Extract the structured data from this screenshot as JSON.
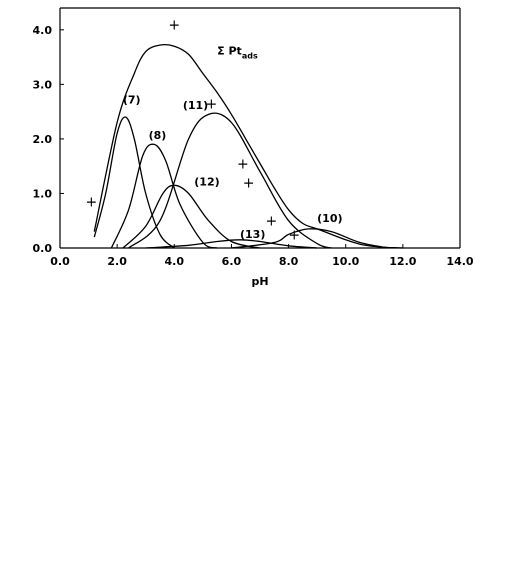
{
  "chart_data": {
    "type": "line",
    "title": "",
    "xlabel": "pH",
    "ylabel": "",
    "xlim": [
      0,
      14
    ],
    "ylim": [
      0,
      4.4
    ],
    "x_ticks": [
      0,
      2,
      4,
      6,
      8,
      10,
      12,
      14
    ],
    "y_ticks": [
      0,
      1,
      2,
      3,
      4
    ],
    "x_tick_labels": [
      "0.0",
      "2.0",
      "4.0",
      "6.0",
      "8.0",
      "10.0",
      "12.0",
      "14.0"
    ],
    "y_tick_labels": [
      "0.0",
      "1.0",
      "2.0",
      "3.0",
      "4.0"
    ],
    "grid": false,
    "series": [
      {
        "name": "(7)",
        "label": "(7)",
        "x": [
          1.2,
          1.6,
          2.0,
          2.3,
          2.6,
          3.0,
          3.5,
          4.0
        ],
        "y": [
          0.2,
          1.0,
          2.1,
          2.4,
          2.0,
          1.0,
          0.25,
          0.0
        ]
      },
      {
        "name": "(8)",
        "label": "(8)",
        "x": [
          1.8,
          2.4,
          2.9,
          3.3,
          3.7,
          4.2,
          5.0,
          5.5
        ],
        "y": [
          0.0,
          0.7,
          1.7,
          1.9,
          1.6,
          0.8,
          0.1,
          0.0
        ]
      },
      {
        "name": "(12)",
        "label": "(12)",
        "x": [
          2.2,
          3.0,
          3.6,
          4.0,
          4.5,
          5.2,
          6.0,
          7.0
        ],
        "y": [
          0.0,
          0.4,
          1.0,
          1.15,
          1.0,
          0.5,
          0.12,
          0.0
        ]
      },
      {
        "name": "(11)",
        "label": "(11)",
        "x": [
          2.4,
          3.5,
          4.5,
          5.2,
          6.0,
          7.0,
          8.0,
          9.0,
          9.5
        ],
        "y": [
          0.0,
          0.5,
          2.0,
          2.45,
          2.3,
          1.4,
          0.5,
          0.08,
          0.0
        ]
      },
      {
        "name": "(13)",
        "label": "(13)",
        "x": [
          3.0,
          4.5,
          5.5,
          6.3,
          7.0,
          8.0,
          9.0
        ],
        "y": [
          0.0,
          0.05,
          0.12,
          0.15,
          0.12,
          0.04,
          0.0
        ]
      },
      {
        "name": "(10)",
        "label": "(10)",
        "x": [
          6.0,
          7.5,
          8.0,
          8.7,
          9.5,
          10.5,
          11.5
        ],
        "y": [
          0.0,
          0.1,
          0.25,
          0.35,
          0.3,
          0.1,
          0.0
        ]
      },
      {
        "name": "ΣPt_ads",
        "label": "Σ Pt",
        "label_sub": "ads",
        "x": [
          1.2,
          2.0,
          2.6,
          3.0,
          3.5,
          4.0,
          4.5,
          5.0,
          5.5,
          6.0,
          6.5,
          7.0,
          7.5,
          8.0,
          8.5,
          9.0,
          9.5,
          10.0,
          10.5,
          11.0,
          11.5,
          12.0
        ],
        "y": [
          0.3,
          2.3,
          3.2,
          3.6,
          3.72,
          3.7,
          3.55,
          3.2,
          2.85,
          2.45,
          2.0,
          1.55,
          1.1,
          0.7,
          0.45,
          0.35,
          0.25,
          0.15,
          0.07,
          0.03,
          0.01,
          0.0
        ]
      }
    ],
    "points": {
      "marker": "+",
      "x": [
        1.1,
        4.0,
        5.3,
        6.4,
        6.6,
        7.4,
        8.2
      ],
      "y": [
        0.85,
        4.1,
        2.65,
        1.55,
        1.2,
        0.5,
        0.25
      ]
    },
    "legend": "none"
  }
}
